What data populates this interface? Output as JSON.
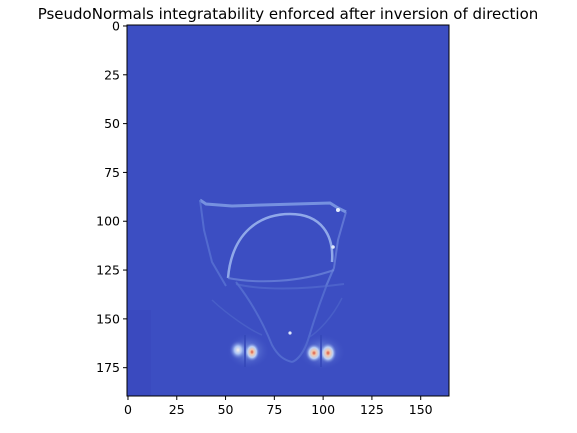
{
  "chart_data": {
    "type": "heatmap",
    "title": "PseudoNormals integratability enforced after inversion of direction",
    "xlabel": "",
    "ylabel": "",
    "xlim": [
      -0.5,
      164.5
    ],
    "ylim": [
      189.5,
      -0.5
    ],
    "image_size": {
      "cols": 165,
      "rows": 190
    },
    "colormap": "coolwarm",
    "background_color": "#3c4ec2",
    "x_ticks": [
      0,
      25,
      50,
      75,
      100,
      125,
      150
    ],
    "y_ticks": [
      0,
      25,
      50,
      75,
      100,
      125,
      150,
      175
    ],
    "x_tick_labels": [
      "0",
      "25",
      "50",
      "75",
      "100",
      "125",
      "150"
    ],
    "y_tick_labels": [
      "0",
      "25",
      "50",
      "75",
      "100",
      "125",
      "150",
      "175"
    ],
    "grid": false,
    "features": {
      "upper_outline": {
        "x": [
          38,
          107
        ],
        "y": [
          88,
          94
        ],
        "type": "trapezoid rim"
      },
      "dome_arc": {
        "x": [
          52,
          103
        ],
        "y": [
          99,
          128
        ],
        "type": "arc"
      },
      "lower_outline": {
        "x": [
          40,
          112
        ],
        "y": [
          130,
          165
        ],
        "type": "curves"
      },
      "bright_spots": [
        {
          "x": 57,
          "y": 164,
          "value": "high"
        },
        {
          "x": 64,
          "y": 165,
          "value": "very high"
        },
        {
          "x": 96,
          "y": 166,
          "value": "very high"
        },
        {
          "x": 103,
          "y": 166,
          "value": "very high"
        },
        {
          "x": 105,
          "y": 93,
          "value": "medium"
        },
        {
          "x": 103,
          "y": 112,
          "value": "medium"
        },
        {
          "x": 80,
          "y": 156,
          "value": "medium"
        }
      ]
    }
  }
}
